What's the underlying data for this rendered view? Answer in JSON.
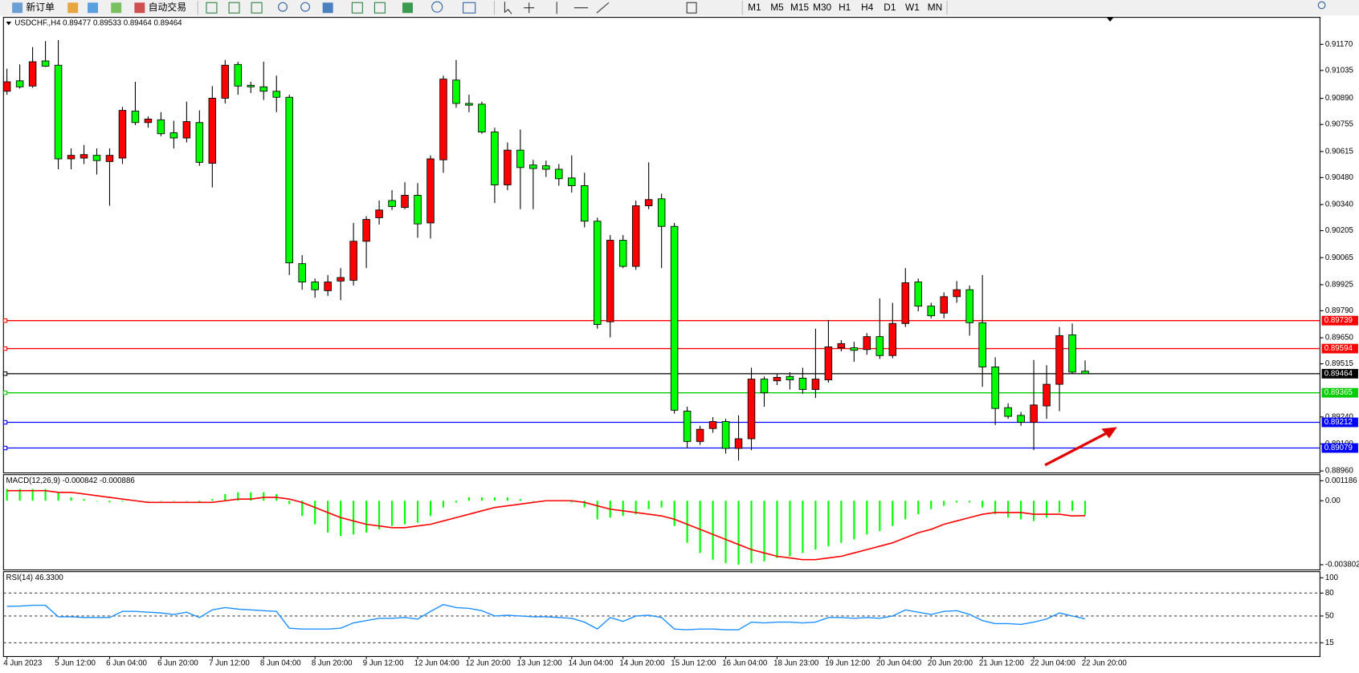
{
  "toolbar": {
    "new_order": "新订单",
    "auto_trading": "自动交易",
    "timeframes": [
      "M1",
      "M5",
      "M15",
      "M30",
      "H1",
      "H4",
      "D1",
      "W1",
      "MN"
    ]
  },
  "chart_data": [
    {
      "type": "candlestick",
      "title": "USDCHF.,H4  0.89477 0.89533 0.89464 0.89464",
      "up_color": "#ff0000",
      "down_color": "#00ff00",
      "categories": [
        "4 Jun 2023",
        null,
        null,
        null,
        "5 Jun 12:00",
        null,
        null,
        null,
        "6 Jun 04:00",
        null,
        null,
        null,
        "6 Jun 20:00",
        null,
        null,
        null,
        "7 Jun 12:00",
        null,
        null,
        null,
        "8 Jun 04:00",
        null,
        null,
        null,
        "8 Jun 20:00",
        null,
        null,
        null,
        "9 Jun 12:00",
        null,
        null,
        null,
        "12 Jun 04:00",
        null,
        null,
        null,
        "12 Jun 20:00",
        null,
        null,
        null,
        "13 Jun 12:00",
        null,
        null,
        null,
        "14 Jun 04:00",
        null,
        null,
        null,
        "14 Jun 20:00",
        null,
        null,
        null,
        "15 Jun 12:00",
        null,
        null,
        null,
        "16 Jun 04:00",
        null,
        null,
        null,
        "18 Jun 23:00",
        null,
        null,
        null,
        "19 Jun 12:00",
        null,
        null,
        null,
        "20 Jun 04:00",
        null,
        null,
        null,
        "20 Jun 20:00",
        null,
        null,
        null,
        "21 Jun 12:00",
        null,
        null,
        null,
        "22 Jun 04:00",
        null,
        null,
        null,
        "22 Jun 20:00"
      ],
      "open": [
        0.90927,
        0.90981,
        0.90954,
        0.91084,
        0.91062,
        0.90577,
        0.90581,
        0.90595,
        0.90563,
        0.90581,
        0.90824,
        0.90765,
        0.90779,
        0.90712,
        0.90685,
        0.90765,
        0.90554,
        0.90891,
        0.91066,
        0.90958,
        0.9095,
        0.90927,
        0.90896,
        0.90034,
        0.89939,
        0.89894,
        0.89944,
        0.89948,
        0.9015,
        0.90272,
        0.90361,
        0.90325,
        0.90388,
        0.90245,
        0.90572,
        0.90985,
        0.90864,
        0.9086,
        0.90716,
        0.90442,
        0.90622,
        0.90545,
        0.90541,
        0.90523,
        0.90478,
        0.90438,
        0.90254,
        0.89733,
        0.90155,
        0.9002,
        0.90334,
        0.9037,
        0.90227,
        0.8927,
        0.89113,
        0.8918,
        0.89216,
        0.89077,
        0.89127,
        0.89436,
        0.89427,
        0.8945,
        0.89441,
        0.89382,
        0.89432,
        0.89598,
        0.89598,
        0.89589,
        0.89656,
        0.89558,
        0.89724,
        0.89939,
        0.89814,
        0.89778,
        0.89863,
        0.89899,
        0.89728,
        0.89499,
        0.89288,
        0.89248,
        0.89212,
        0.89297,
        0.89409,
        0.89665,
        0.89477
      ],
      "high": [
        0.91044,
        0.91066,
        0.91156,
        0.91187,
        0.91192,
        0.90631,
        0.90649,
        0.90631,
        0.90631,
        0.90846,
        0.90976,
        0.90797,
        0.90819,
        0.90774,
        0.90873,
        0.90828,
        0.90954,
        0.91089,
        0.9108,
        0.90976,
        0.9108,
        0.91008,
        0.90909,
        0.90078,
        0.89957,
        0.89975,
        0.90011,
        0.90245,
        0.9028,
        0.90361,
        0.90415,
        0.90456,
        0.90451,
        0.90595,
        0.91008,
        0.91089,
        0.90909,
        0.90873,
        0.90738,
        0.90662,
        0.90729,
        0.90572,
        0.90568,
        0.9055,
        0.90595,
        0.90505,
        0.90272,
        0.90182,
        0.90182,
        0.90361,
        0.90559,
        0.90397,
        0.90245,
        0.89293,
        0.89194,
        0.89239,
        0.8923,
        0.89248,
        0.89495,
        0.8945,
        0.89463,
        0.89472,
        0.89495,
        0.89697,
        0.89742,
        0.89638,
        0.89629,
        0.89674,
        0.89854,
        0.89831,
        0.90011,
        0.89957,
        0.89831,
        0.89885,
        0.89944,
        0.89921,
        0.89975,
        0.89549,
        0.89311,
        0.89266,
        0.89535,
        0.89508,
        0.89706,
        0.89724,
        0.89533
      ],
      "low": [
        0.90909,
        0.90941,
        0.90945,
        0.91053,
        0.90523,
        0.90523,
        0.9055,
        0.90496,
        0.90334,
        0.9055,
        0.90752,
        0.90738,
        0.90694,
        0.90631,
        0.90662,
        0.90541,
        0.90429,
        0.90864,
        0.90909,
        0.90918,
        0.90882,
        0.90819,
        0.89975,
        0.89899,
        0.89858,
        0.89867,
        0.89845,
        0.89921,
        0.90011,
        0.90236,
        0.90312,
        0.90316,
        0.90168,
        0.90164,
        0.90505,
        0.90842,
        0.90819,
        0.90707,
        0.90348,
        0.90415,
        0.90316,
        0.90316,
        0.90483,
        0.90438,
        0.90402,
        0.90222,
        0.89697,
        0.89652,
        0.90011,
        0.90002,
        0.90316,
        0.90011,
        0.89257,
        0.89077,
        0.89095,
        0.89158,
        0.8905,
        0.89014,
        0.89068,
        0.89293,
        0.89405,
        0.89382,
        0.8936,
        0.89338,
        0.89418,
        0.8958,
        0.89526,
        0.89562,
        0.8954,
        0.89544,
        0.89706,
        0.89787,
        0.89751,
        0.89751,
        0.89831,
        0.89661,
        0.89396,
        0.89198,
        0.8923,
        0.89194,
        0.89068,
        0.8923,
        0.8927,
        0.89463,
        0.89464
      ],
      "close": [
        0.90976,
        0.9095,
        0.9108,
        0.91057,
        0.90577,
        0.90595,
        0.90599,
        0.90568,
        0.90595,
        0.90828,
        0.90765,
        0.90783,
        0.90707,
        0.90685,
        0.9077,
        0.90559,
        0.90891,
        0.91062,
        0.90954,
        0.9095,
        0.90927,
        0.90896,
        0.90038,
        0.89939,
        0.89899,
        0.89939,
        0.89962,
        0.9015,
        0.90263,
        0.90312,
        0.9033,
        0.90388,
        0.9024,
        0.90577,
        0.9099,
        0.90864,
        0.90855,
        0.90716,
        0.90442,
        0.90622,
        0.90532,
        0.90527,
        0.90523,
        0.90474,
        0.90438,
        0.90254,
        0.89719,
        0.90155,
        0.9002,
        0.90334,
        0.90366,
        0.90227,
        0.89275,
        0.89113,
        0.89176,
        0.89216,
        0.89077,
        0.89127,
        0.89436,
        0.89365,
        0.89445,
        0.89432,
        0.89382,
        0.89436,
        0.89603,
        0.8962,
        0.89585,
        0.89656,
        0.89558,
        0.89724,
        0.89935,
        0.89814,
        0.89764,
        0.89863,
        0.89899,
        0.89728,
        0.89499,
        0.89284,
        0.89243,
        0.89212,
        0.89302,
        0.89409,
        0.89661,
        0.89472,
        0.89464
      ],
      "ylim": [
        0.8895,
        0.9131
      ],
      "yticks": [
        {
          "value": 0.9117,
          "label": "0.91170"
        },
        0.91035,
        {
          "value": 0.9089,
          "label": "0.90890"
        },
        0.90755,
        0.90615,
        {
          "value": 0.9048,
          "label": "0.90480"
        },
        {
          "value": 0.9034,
          "label": "0.90340"
        },
        0.90205,
        0.90065,
        0.89925,
        {
          "value": 0.8979,
          "label": "0.89790"
        },
        {
          "value": 0.8965,
          "label": "0.89650"
        },
        0.89515,
        {
          "value": 0.8924,
          "label": "0.89240"
        },
        {
          "value": 0.891,
          "label": "0.89100"
        },
        {
          "value": 0.8896,
          "label": "0.88960"
        }
      ],
      "levels": [
        {
          "value": 0.89739,
          "color": "#ff0000"
        },
        {
          "value": 0.89594,
          "color": "#ff0000"
        },
        {
          "value": 0.89464,
          "color": "#000000"
        },
        {
          "value": 0.89365,
          "color": "#00cc00"
        },
        {
          "value": 0.89212,
          "color": "#0000ff"
        },
        {
          "value": 0.89079,
          "color": "#0000ff"
        }
      ]
    },
    {
      "type": "macd",
      "title": "MACD(12,26,9) -0.000842 -0.000886",
      "ylim": [
        -0.00411,
        0.00155
      ],
      "yticks": [
        0.001186,
        {
          "value": 0,
          "label": "0.00"
        },
        -0.003802
      ],
      "histogram": {
        "color": "#00ff00",
        "values": [
          0.0007,
          0.0007,
          0.0007,
          0.0007,
          0.0005,
          0.0002,
          0.0001,
          0,
          -0.0001,
          -5e-05,
          0,
          0,
          0,
          0,
          0,
          -0.0001,
          0.0001,
          0.0004,
          0.0005,
          0.0005,
          0.0005,
          0.0004,
          -0.0002,
          -0.0009,
          -0.0014,
          -0.0019,
          -0.0021,
          -0.002,
          -0.0019,
          -0.0017,
          -0.0015,
          -0.0014,
          -0.0013,
          -0.0009,
          -0.0004,
          -0.0001,
          0.0002,
          0.0002,
          0.0002,
          0.0002,
          0.0001,
          0,
          0,
          0,
          -0.0001,
          -0.0004,
          -0.0011,
          -0.001,
          -0.0009,
          -0.0008,
          -0.0005,
          -0.0004,
          -0.0015,
          -0.0025,
          -0.0031,
          -0.0035,
          -0.0037,
          -0.0038,
          -0.0037,
          -0.0036,
          -0.0034,
          -0.0033,
          -0.0031,
          -0.0029,
          -0.0027,
          -0.0025,
          -0.0023,
          -0.002,
          -0.0018,
          -0.0015,
          -0.0011,
          -0.0008,
          -0.0005,
          -0.0003,
          -0.0001,
          -0.0001,
          -0.0004,
          -0.0008,
          -0.001,
          -0.0011,
          -0.0012,
          -0.001,
          -0.0007,
          -0.0006,
          -0.000842
        ]
      },
      "signal": {
        "color": "#ff0000",
        "values": [
          0.0006,
          0.0006,
          0.0006,
          0.0006,
          0.0005,
          0.0005,
          0.0004,
          0.0003,
          0.0002,
          0.0001,
          0,
          -0.0001,
          -0.0001,
          -0.0001,
          -0.0001,
          -0.0001,
          -0.0001,
          0,
          0.0001,
          0.0001,
          0.0002,
          0.0002,
          0.0001,
          -0.0001,
          -0.0004,
          -0.0007,
          -0.001,
          -0.0012,
          -0.0014,
          -0.0015,
          -0.0016,
          -0.0016,
          -0.0015,
          -0.0014,
          -0.0012,
          -0.001,
          -0.0008,
          -0.0006,
          -0.0004,
          -0.0003,
          -0.0002,
          -0.0001,
          0,
          0,
          0,
          -0.0001,
          -0.0003,
          -0.0005,
          -0.0006,
          -0.0007,
          -0.0008,
          -0.0009,
          -0.0011,
          -0.0014,
          -0.0017,
          -0.002,
          -0.0023,
          -0.0026,
          -0.0029,
          -0.0031,
          -0.0033,
          -0.0034,
          -0.0035,
          -0.0035,
          -0.0034,
          -0.0033,
          -0.0031,
          -0.0029,
          -0.0027,
          -0.0025,
          -0.0022,
          -0.0019,
          -0.0017,
          -0.0014,
          -0.0012,
          -0.001,
          -0.0008,
          -0.0007,
          -0.0007,
          -0.0007,
          -0.0008,
          -0.0008,
          -0.0008,
          -0.0009,
          -0.000886
        ]
      }
    },
    {
      "type": "rsi",
      "title": "RSI(14) 46.3300",
      "color": "#1e90ff",
      "ylim": [
        -3,
        108
      ],
      "yticks": [
        100,
        80,
        50,
        15
      ],
      "levels": [
        80,
        50,
        15
      ],
      "values": [
        62.6,
        63,
        64,
        64,
        49,
        49,
        48,
        48,
        48,
        56,
        56,
        55,
        54,
        52,
        55,
        48,
        58,
        61,
        59,
        58,
        57,
        56,
        34,
        33,
        33,
        33,
        34,
        41,
        44,
        47,
        47,
        48,
        46,
        56,
        65,
        61,
        60,
        57,
        50,
        51,
        50,
        49,
        49,
        48,
        47,
        42,
        33,
        48,
        43,
        50,
        51,
        48,
        33,
        32,
        33,
        33,
        32,
        32,
        42,
        41,
        42,
        42,
        41,
        42,
        48,
        48,
        47,
        48,
        47,
        50,
        58,
        55,
        52,
        56,
        57,
        52,
        44,
        40,
        40,
        39,
        42,
        46,
        54,
        50,
        46.33
      ]
    }
  ]
}
